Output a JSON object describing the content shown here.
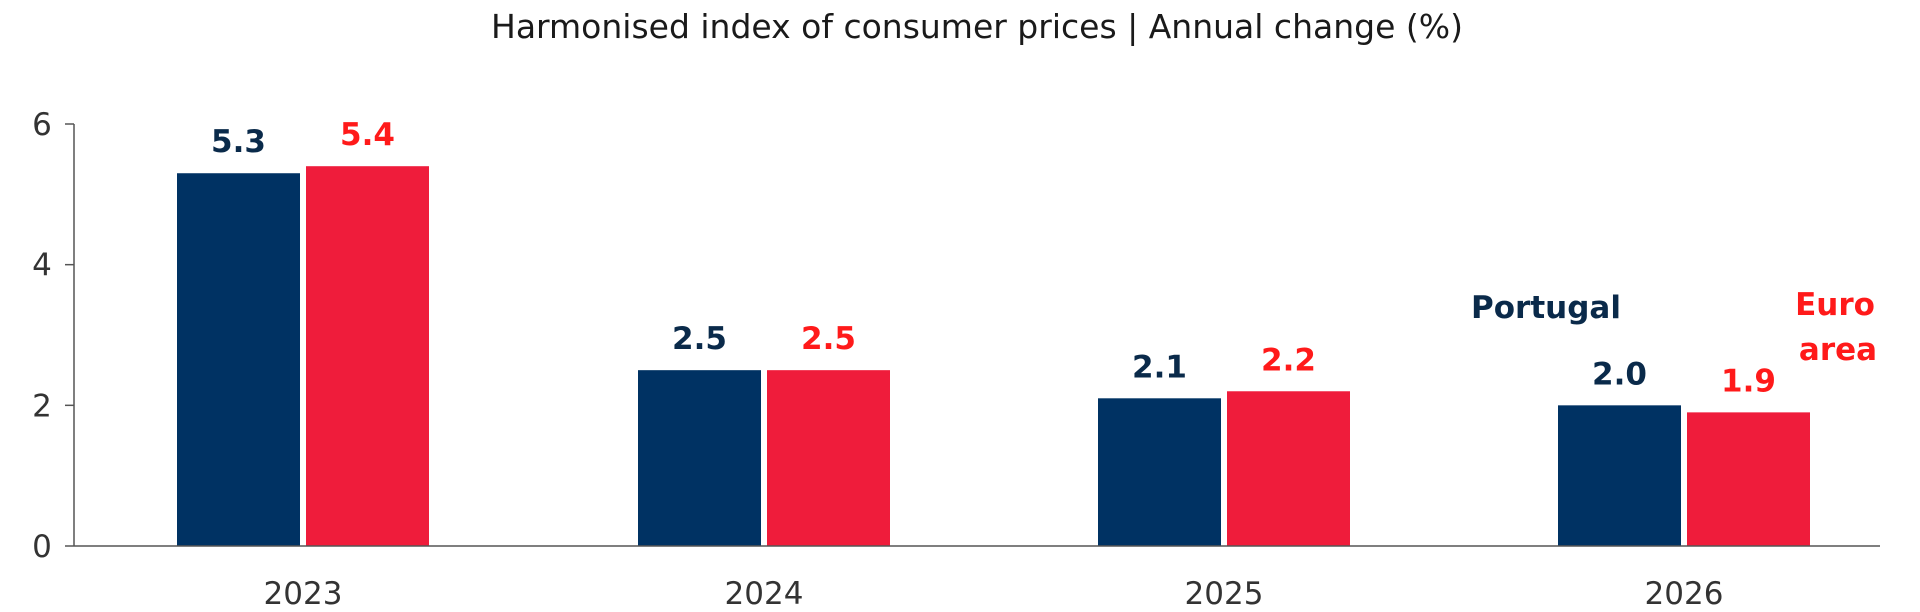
{
  "chart_data": {
    "type": "bar",
    "title": "Harmonised index of consumer prices | Annual change (%)",
    "categories": [
      "2023",
      "2024",
      "2025",
      "2026"
    ],
    "series": [
      {
        "name": "Portugal",
        "color": "#003263",
        "label_color": "#0a2a4a",
        "values": [
          5.3,
          2.5,
          2.1,
          2.0
        ]
      },
      {
        "name": "Euro area",
        "color": "#ef1c3b",
        "label_color": "#ff1a1a",
        "values": [
          5.4,
          2.5,
          2.2,
          1.9
        ]
      }
    ],
    "value_labels": [
      [
        "5.3",
        "2.5",
        "2.1",
        "2.0"
      ],
      [
        "5.4",
        "2.5",
        "2.2",
        "1.9"
      ]
    ],
    "legend": {
      "portugal": "Portugal",
      "euro_area_line1": "Euro",
      "euro_area_line2": "area",
      "placement": "top-right (inline annotations)"
    },
    "xlabel": "",
    "ylabel": "",
    "ylim": [
      0,
      6
    ],
    "yticks": [
      "0",
      "2",
      "4",
      "6"
    ],
    "grid": false
  }
}
